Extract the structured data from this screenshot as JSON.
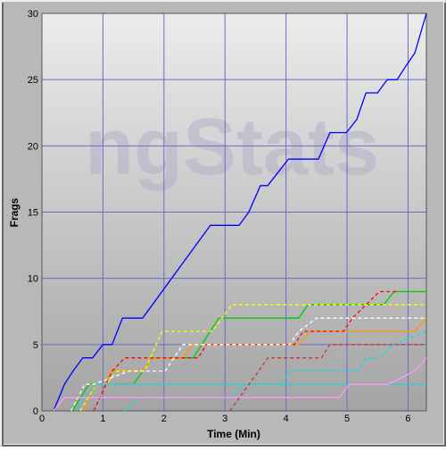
{
  "chart_data": {
    "type": "line",
    "watermark": "ngStats",
    "xlabel": "Time (Min)",
    "ylabel": "Frags",
    "xlim": [
      0,
      6.3
    ],
    "ylim": [
      0,
      30
    ],
    "xticks": [
      0,
      1,
      2,
      3,
      4,
      5,
      6
    ],
    "yticks": [
      0,
      5,
      10,
      15,
      20,
      25,
      30
    ],
    "grid": true,
    "series": [
      {
        "color": "#0000ff",
        "dash": false,
        "x": [
          0.19,
          0.37,
          0.51,
          0.67,
          0.83,
          1.0,
          1.15,
          1.32,
          1.65,
          2.76,
          3.23,
          3.39,
          3.58,
          3.7,
          4.04,
          4.53,
          4.72,
          4.99,
          5.16,
          5.31,
          5.5,
          5.66,
          5.82,
          5.96,
          6.11,
          6.3
        ],
        "values": [
          0,
          2,
          3,
          4,
          4,
          5,
          5,
          7,
          7,
          14,
          14,
          15,
          17,
          17,
          19,
          19,
          21,
          21,
          22,
          24,
          24,
          25,
          25,
          26,
          27,
          30
        ]
      },
      {
        "color": "#00cc00",
        "dash": false,
        "x": [
          0.5,
          0.77,
          1.5,
          1.8,
          2.48,
          2.9,
          4.21,
          4.36,
          5.6,
          5.77,
          6.3
        ],
        "values": [
          0,
          2,
          2,
          4,
          4,
          7,
          7,
          8,
          8,
          9,
          9
        ]
      },
      {
        "color": "#ff9900",
        "dash": false,
        "x": [
          0.7,
          0.85,
          1.0,
          1.14,
          1.65,
          1.8,
          2.31,
          2.46,
          4.21,
          4.4,
          6.11,
          6.3
        ],
        "values": [
          0,
          2,
          2,
          3,
          3,
          4,
          4,
          5,
          5,
          6,
          6,
          7
        ]
      },
      {
        "color": "#ff0000",
        "dash": true,
        "x": [
          0.85,
          1.15,
          1.36,
          2.56,
          2.7,
          4.14,
          4.28,
          4.94,
          5.09,
          5.31,
          5.53,
          5.82
        ],
        "values": [
          0,
          3,
          4,
          4,
          5,
          5,
          6,
          6,
          7,
          8,
          9,
          9
        ]
      },
      {
        "color": "#ffff00",
        "dash": true,
        "x": [
          0.63,
          0.89,
          1.04,
          1.24,
          1.68,
          1.97,
          2.79,
          2.95,
          3.11,
          6.3
        ],
        "values": [
          0,
          2,
          2,
          3,
          3,
          6,
          6,
          7,
          8,
          8
        ]
      },
      {
        "color": "#ffffff",
        "dash": true,
        "x": [
          0.48,
          0.7,
          0.85,
          1.43,
          2.02,
          2.31,
          4.06,
          4.21,
          4.5,
          6.3
        ],
        "values": [
          0,
          2,
          2,
          3,
          3,
          5,
          5,
          6,
          7,
          7
        ]
      },
      {
        "color": "#00e5e5",
        "dash": true,
        "x": [
          1.36,
          1.58,
          3.11,
          3.29,
          3.92,
          4.06,
          5.16,
          5.31,
          5.53,
          5.75,
          6.3
        ],
        "values": [
          0,
          1,
          1,
          2,
          2,
          3,
          3,
          4,
          4,
          5,
          6
        ]
      },
      {
        "color": "#33cccc",
        "dash": false,
        "x": [
          0.56,
          0.7,
          0.89,
          6.3
        ],
        "values": [
          0,
          1,
          2,
          2
        ]
      },
      {
        "color": "#ff99ff",
        "dash": false,
        "x": [
          0.19,
          0.37,
          4.87,
          5.04,
          5.67,
          6.11,
          6.3
        ],
        "values": [
          0,
          1,
          1,
          2,
          2,
          3,
          4
        ]
      },
      {
        "color": "#cc3333",
        "dash": true,
        "x": [
          3.08,
          3.55,
          3.7,
          4.58,
          4.72,
          6.3
        ],
        "values": [
          0,
          3,
          4,
          4,
          5,
          5
        ]
      }
    ]
  }
}
